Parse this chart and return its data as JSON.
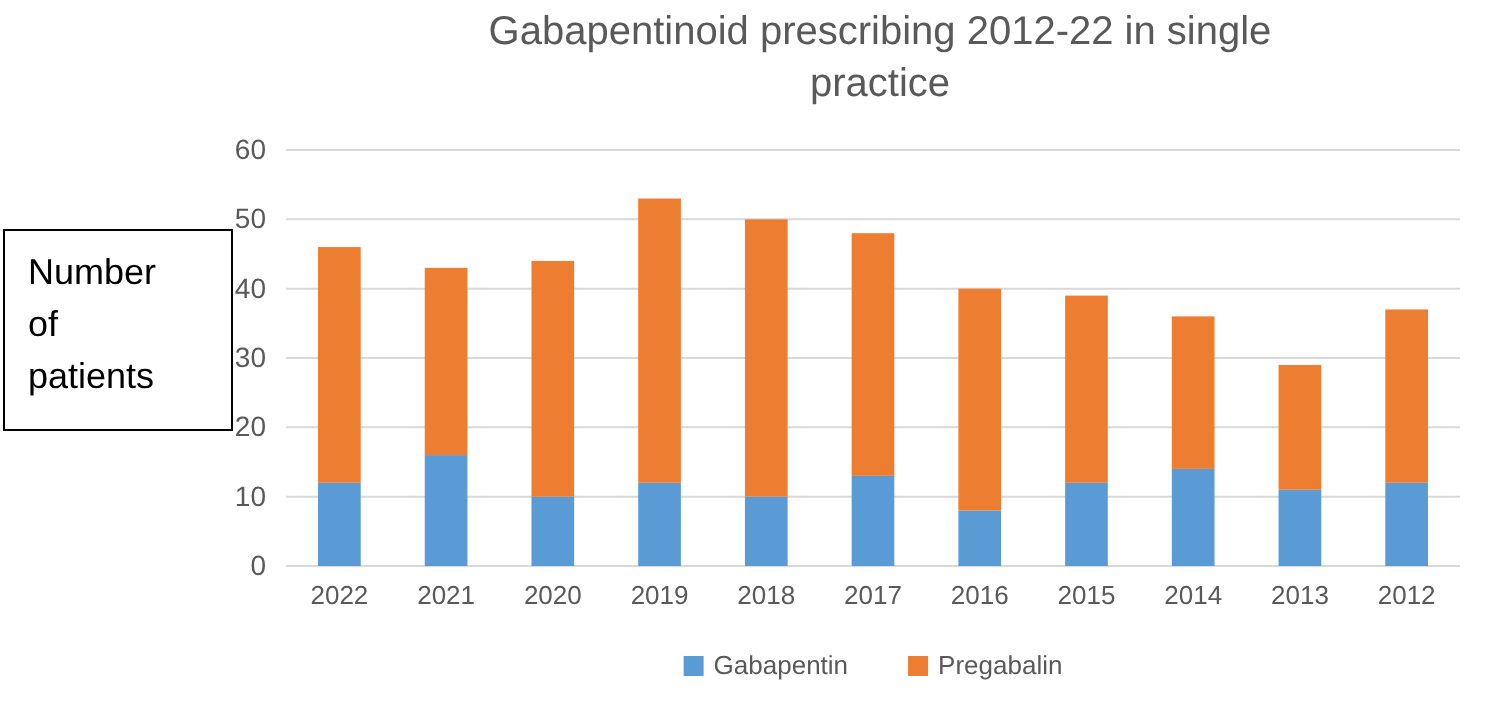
{
  "chart_data": {
    "type": "bar",
    "title": "Gabapentinoid prescribing 2012-22 in single practice",
    "ylabel": "Number of patients",
    "categories": [
      "2022",
      "2021",
      "2020",
      "2019",
      "2018",
      "2017",
      "2016",
      "2015",
      "2014",
      "2013",
      "2012"
    ],
    "series": [
      {
        "name": "Gabapentin",
        "color": "#5b9bd5",
        "values": [
          12,
          16,
          10,
          12,
          10,
          13,
          8,
          12,
          14,
          11,
          12
        ]
      },
      {
        "name": "Pregabalin",
        "color": "#ed7d31",
        "values": [
          34,
          27,
          34,
          41,
          40,
          35,
          32,
          27,
          22,
          18,
          25
        ]
      }
    ],
    "stacked": true,
    "ylim": [
      0,
      60
    ],
    "yticks": [
      0,
      10,
      20,
      30,
      40,
      50,
      60
    ],
    "grid": "y",
    "legend": "bottom"
  }
}
